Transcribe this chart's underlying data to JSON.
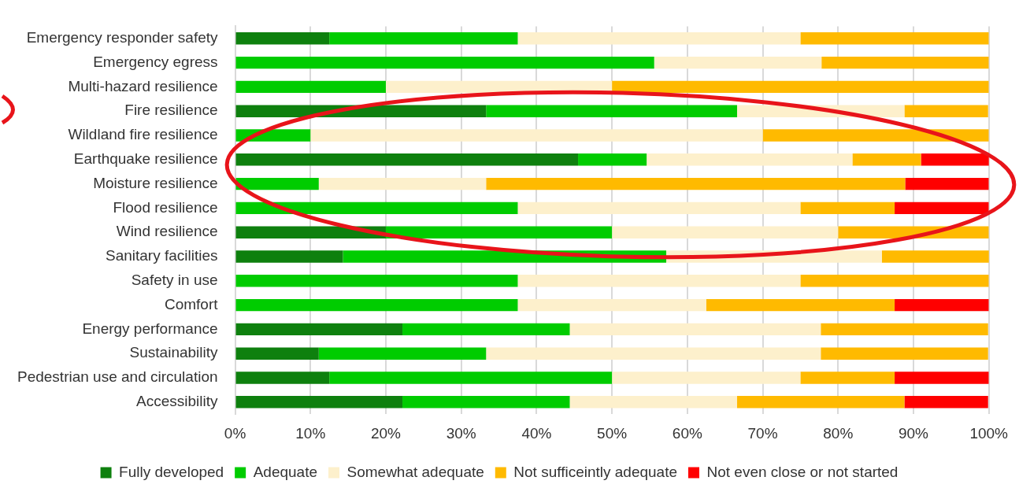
{
  "chart_data": {
    "type": "bar",
    "orientation": "horizontal",
    "stacked": true,
    "legend": "bottom",
    "grid": "x",
    "categories": [
      "Emergency responder safety",
      "Emergency egress",
      "Multi-hazard resilience",
      "Fire resilience",
      "Wildland fire resilience",
      "Earthquake resilience",
      "Moisture resilience",
      "Flood resilience",
      "Wind resilience",
      "Sanitary facilities",
      "Safety in use",
      "Comfort",
      "Energy performance",
      "Sustainability",
      "Pedestrian use and circulation",
      "Accessibility"
    ],
    "xlim": [
      0,
      100
    ],
    "xticks": [
      {
        "value": 0,
        "label": "0%"
      },
      {
        "value": 10,
        "label": "10%"
      },
      {
        "value": 20,
        "label": "20%"
      },
      {
        "value": 30,
        "label": "30%"
      },
      {
        "value": 40,
        "label": "40%"
      },
      {
        "value": 50,
        "label": "50%"
      },
      {
        "value": 60,
        "label": "60%"
      },
      {
        "value": 70,
        "label": "70%"
      },
      {
        "value": 80,
        "label": "80%"
      },
      {
        "value": 90,
        "label": "90%"
      },
      {
        "value": 100,
        "label": "100%"
      }
    ],
    "series": [
      {
        "name": "Fully developed",
        "color": "#0e800e",
        "values": [
          12.5,
          0,
          0,
          33.3,
          0,
          45.5,
          0,
          0,
          20,
          14.3,
          0,
          0,
          22.2,
          11.1,
          12.5,
          22.2
        ]
      },
      {
        "name": "Adequate",
        "color": "#00cc00",
        "values": [
          25,
          55.6,
          20,
          33.3,
          10,
          9.1,
          11.1,
          37.5,
          30,
          42.9,
          37.5,
          37.5,
          22.2,
          22.2,
          37.5,
          22.2
        ]
      },
      {
        "name": "Somewhat adequate",
        "color": "#fdf0cc",
        "values": [
          37.5,
          22.2,
          30,
          22.2,
          60,
          27.3,
          22.2,
          37.5,
          30,
          28.6,
          37.5,
          25,
          33.3,
          44.4,
          25,
          22.2
        ]
      },
      {
        "name": "Not sufficeintly adequate",
        "color": "#ffba00",
        "values": [
          25,
          22.2,
          50,
          11.1,
          30,
          9.1,
          55.6,
          12.5,
          20,
          14.3,
          25,
          25,
          22.2,
          22.2,
          12.5,
          22.2
        ]
      },
      {
        "name": "Not even close or not started",
        "color": "#ff0000",
        "values": [
          0,
          0,
          0,
          0,
          0,
          9.1,
          11.1,
          12.5,
          0,
          0,
          0,
          12.5,
          0,
          0,
          12.5,
          11.1
        ]
      }
    ]
  }
}
